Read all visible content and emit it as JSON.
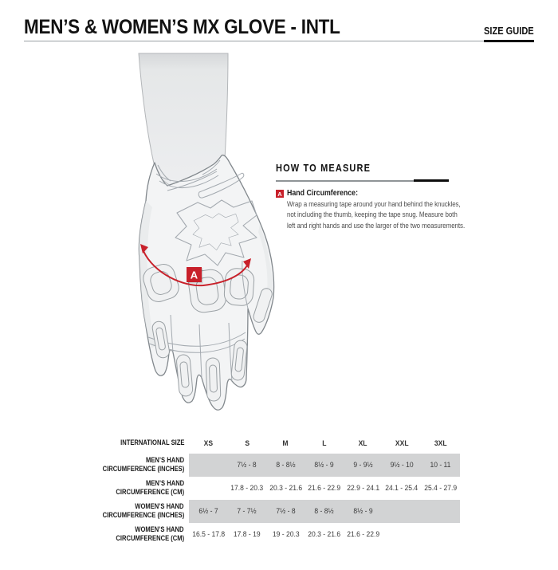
{
  "header": {
    "title": "MEN’S & WOMEN’S MX GLOVE - INTL",
    "size_guide": "SIZE GUIDE"
  },
  "illustration": {
    "marker_label": "A"
  },
  "how_to_measure": {
    "heading": "HOW TO MEASURE",
    "marker_label": "A",
    "legend_title": "Hand Circumference:",
    "instructions": [
      "Wrap a measuring tape around your hand behind the knuckles,",
      "not including the thumb, keeping the tape snug. Measure both",
      "left and right hands and use the larger of the two measurements."
    ]
  },
  "size_table": {
    "corner_label": "INTERNATIONAL SIZE",
    "columns": [
      "XS",
      "S",
      "M",
      "L",
      "XL",
      "XXL",
      "3XL"
    ],
    "rows": [
      {
        "label_lines": [
          "MEN’S HAND",
          "CIRCUMFERENCE (INCHES)"
        ],
        "shaded": true,
        "values": [
          "",
          "7½ - 8",
          "8 - 8½",
          "8½ - 9",
          "9 - 9½",
          "9½ - 10",
          "10 - 11"
        ]
      },
      {
        "label_lines": [
          "MEN’S HAND",
          "CIRCUMFERENCE (CM)"
        ],
        "shaded": false,
        "values": [
          "",
          "17.8 - 20.3",
          "20.3 - 21.6",
          "21.6 - 22.9",
          "22.9 - 24.1",
          "24.1 - 25.4",
          "25.4 - 27.9"
        ]
      },
      {
        "label_lines": [
          "WOMEN’S HAND",
          "CIRCUMFERENCE (INCHES)"
        ],
        "shaded": true,
        "values": [
          "6½ - 7",
          "7 - 7½",
          "7½ - 8",
          "8 - 8½",
          "8½ - 9",
          "",
          ""
        ]
      },
      {
        "label_lines": [
          "WOMEN’S HAND",
          "CIRCUMFERENCE (CM)"
        ],
        "shaded": false,
        "values": [
          "16.5 - 17.8",
          "17.8 - 19",
          "19 - 20.3",
          "20.3 - 21.6",
          "21.6 - 22.9",
          "",
          ""
        ]
      }
    ]
  },
  "colors": {
    "accent_red": "#c8202a",
    "row_shade": "#d2d3d4",
    "heading_black": "#111111"
  }
}
